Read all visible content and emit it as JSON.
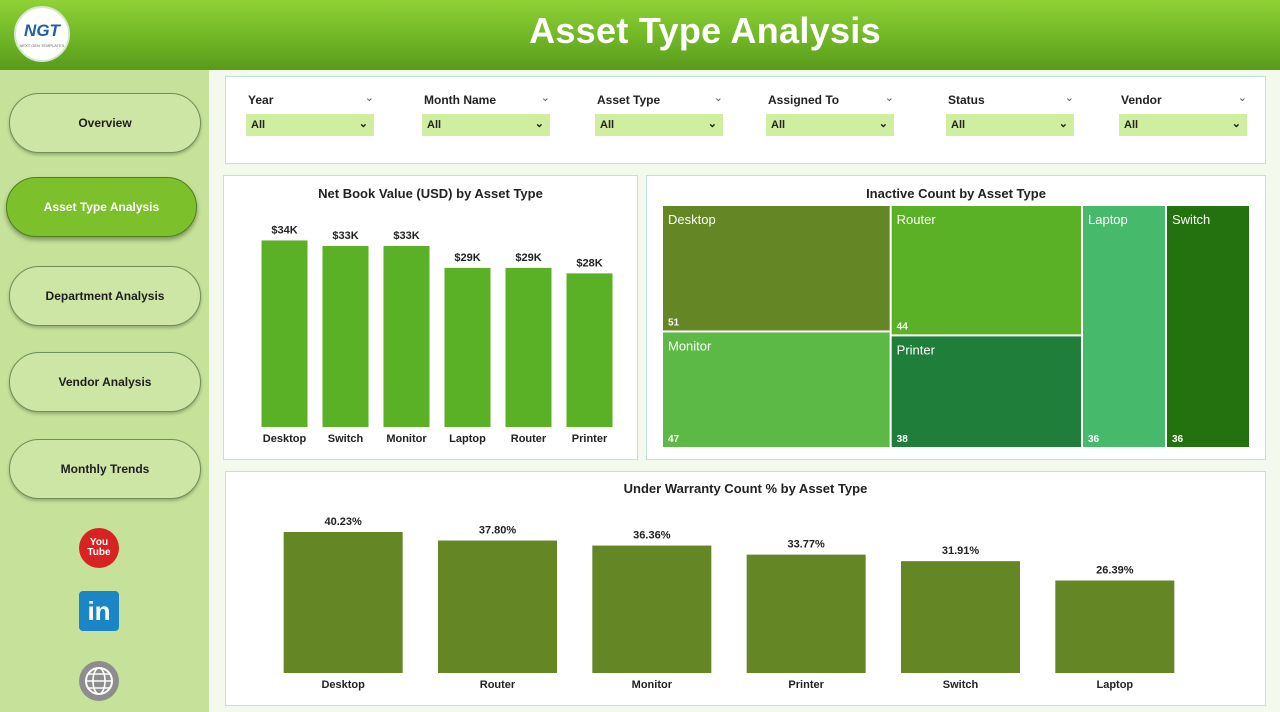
{
  "header": {
    "title": "Asset Type Analysis",
    "logo_text": "NGT",
    "logo_sub": "NEXT GEN TEMPLATES"
  },
  "sidebar": {
    "items": [
      {
        "label": "Overview",
        "active": false
      },
      {
        "label": "Asset Type Analysis",
        "active": true
      },
      {
        "label": "Department Analysis",
        "active": false
      },
      {
        "label": "Vendor Analysis",
        "active": false
      },
      {
        "label": "Monthly Trends",
        "active": false
      }
    ],
    "social": {
      "youtube_line1": "You",
      "youtube_line2": "Tube",
      "linkedin": "in"
    }
  },
  "filters": [
    {
      "label": "Year",
      "value": "All"
    },
    {
      "label": "Month Name",
      "value": "All"
    },
    {
      "label": "Asset Type",
      "value": "All"
    },
    {
      "label": "Assigned To",
      "value": "All"
    },
    {
      "label": "Status",
      "value": "All"
    },
    {
      "label": "Vendor",
      "value": "All"
    }
  ],
  "colors": {
    "bright_green": "#5bb126",
    "olive_green": "#648625"
  },
  "chart_data": [
    {
      "type": "bar",
      "title": "Net Book Value (USD) by Asset Type",
      "categories": [
        "Desktop",
        "Switch",
        "Monitor",
        "Laptop",
        "Router",
        "Printer"
      ],
      "values": [
        34,
        33,
        33,
        29,
        29,
        28
      ],
      "labels": [
        "$34K",
        "$33K",
        "$33K",
        "$29K",
        "$29K",
        "$28K"
      ],
      "unit": "K USD",
      "ylim": [
        0,
        37
      ]
    },
    {
      "type": "treemap",
      "title": "Inactive Count by Asset Type",
      "items": [
        {
          "name": "Desktop",
          "value": 51,
          "color": "#648625"
        },
        {
          "name": "Router",
          "value": 44,
          "color": "#5bb126"
        },
        {
          "name": "Monitor",
          "value": 47,
          "color": "#5cb946"
        },
        {
          "name": "Printer",
          "value": 38,
          "color": "#207e3b"
        },
        {
          "name": "Laptop",
          "value": 36,
          "color": "#46b96a"
        },
        {
          "name": "Switch",
          "value": 36,
          "color": "#24720f"
        }
      ]
    },
    {
      "type": "bar",
      "title": "Under Warranty Count % by Asset Type",
      "categories": [
        "Desktop",
        "Router",
        "Monitor",
        "Printer",
        "Switch",
        "Laptop"
      ],
      "values": [
        40.23,
        37.8,
        36.36,
        33.77,
        31.91,
        26.39
      ],
      "labels": [
        "40.23%",
        "37.80%",
        "36.36%",
        "33.77%",
        "31.91%",
        "26.39%"
      ],
      "ylim": [
        0,
        40.23
      ]
    }
  ]
}
